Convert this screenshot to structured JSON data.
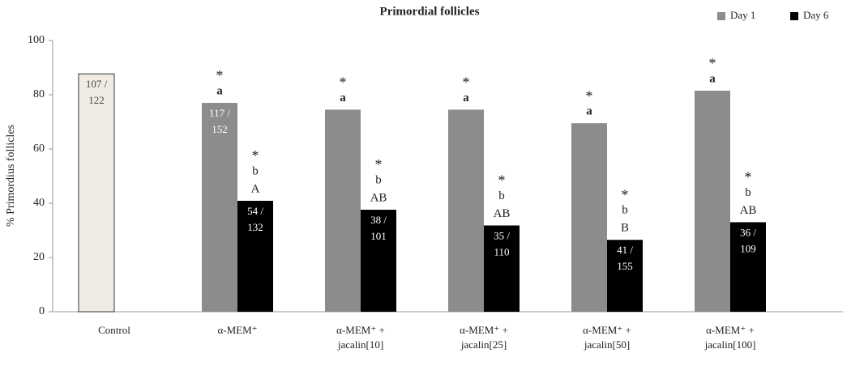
{
  "chart_data": {
    "type": "bar",
    "title": "Primordial follicles",
    "ylabel": "% Primordius follicles",
    "categories": [
      [
        "Control"
      ],
      [
        "α-MEM⁺"
      ],
      [
        "α-MEM⁺ +",
        "jacalin[10]"
      ],
      [
        "α-MEM⁺ +",
        "jacalin[25]"
      ],
      [
        "α-MEM⁺ +",
        "jacalin[50]"
      ],
      [
        "α-MEM⁺ +",
        "jacalin[100]"
      ]
    ],
    "series": [
      {
        "name": "Day 1",
        "color": "#8c8c8c",
        "point_colors": [
          "#f0ece4",
          null,
          null,
          null,
          null,
          null
        ],
        "values": [
          87.7,
          77,
          74.5,
          74.5,
          69.5,
          81.5
        ],
        "value_labels": [
          "107 / 122",
          "117 / 152",
          null,
          null,
          null,
          null
        ],
        "markers": [
          null,
          [
            "*",
            "a"
          ],
          [
            "*",
            "a"
          ],
          [
            "*",
            "a"
          ],
          [
            "*",
            "a"
          ],
          [
            "*",
            "a"
          ]
        ]
      },
      {
        "name": "Day 6",
        "color": "#000000",
        "values": [
          null,
          40.9,
          37.6,
          31.8,
          26.5,
          33.0
        ],
        "value_labels": [
          null,
          "54 / 132",
          "38 / 101",
          "35 / 110",
          "41 / 155",
          "36 / 109"
        ],
        "markers": [
          null,
          [
            "*",
            "b",
            "A"
          ],
          [
            "*",
            "b",
            "AB"
          ],
          [
            "*",
            "b",
            "AB"
          ],
          [
            "*",
            "b",
            "B"
          ],
          [
            "*",
            "b",
            "AB"
          ]
        ]
      }
    ],
    "ylim": [
      0,
      100
    ],
    "yticks": [
      0,
      20,
      40,
      60,
      80,
      100
    ],
    "grid": false,
    "legend": "top-right"
  }
}
